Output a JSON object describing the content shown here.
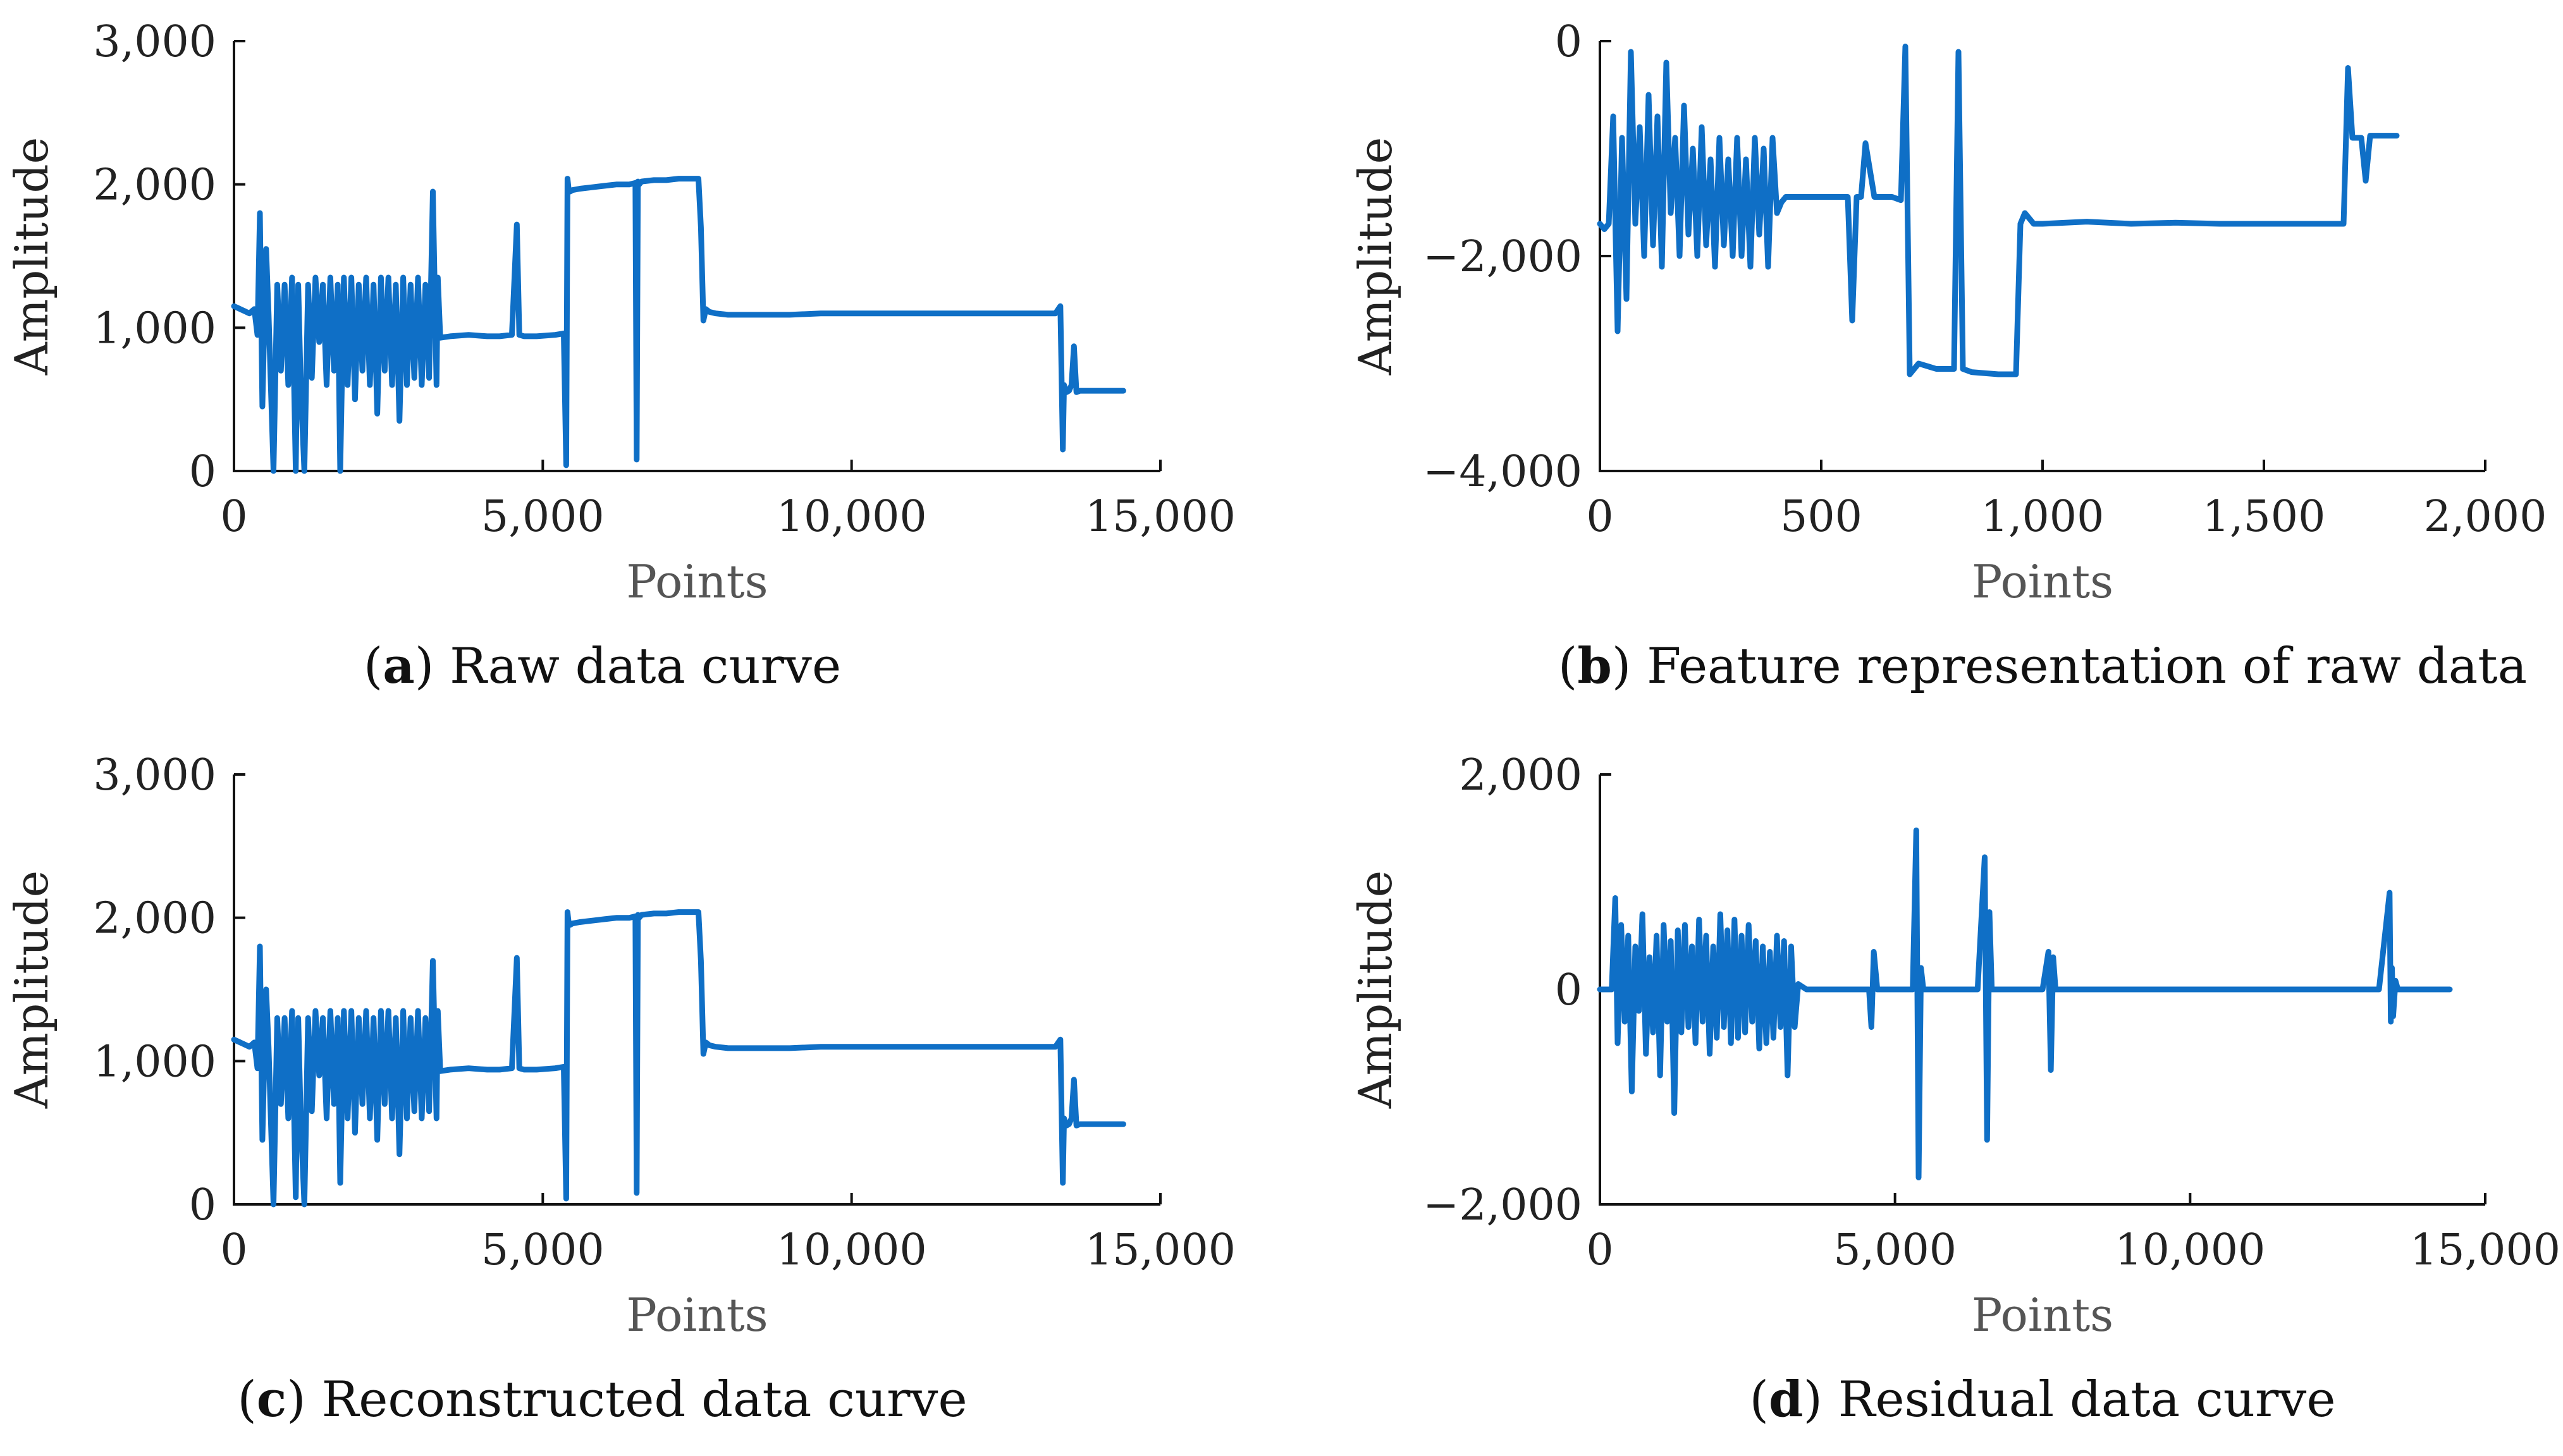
{
  "colors": {
    "series": "#0f6fc6",
    "axis": "#111111"
  },
  "chart_data": [
    {
      "id": "a",
      "type": "line",
      "caption_letter": "a",
      "caption_text": "Raw data curve",
      "xlabel": "Points",
      "ylabel": "Amplitude",
      "xlim": [
        0,
        15000
      ],
      "ylim": [
        0,
        3000
      ],
      "xticks": [
        0,
        5000,
        10000,
        15000
      ],
      "xtick_labels": [
        "0",
        "5,000",
        "10,000",
        "15,000"
      ],
      "yticks": [
        0,
        1000,
        2000,
        3000
      ],
      "ytick_labels": [
        "0",
        "1,000",
        "2,000",
        "3,000"
      ],
      "series": [
        {
          "x": [
            0,
            150,
            250,
            330,
            380,
            420,
            460,
            520,
            560,
            640,
            700,
            760,
            820,
            880,
            940,
            1000,
            1040,
            1080,
            1140,
            1200,
            1260,
            1320,
            1380,
            1440,
            1500,
            1560,
            1620,
            1680,
            1720,
            1780,
            1840,
            1900,
            1960,
            2020,
            2080,
            2140,
            2200,
            2260,
            2320,
            2380,
            2440,
            2500,
            2560,
            2620,
            2680,
            2740,
            2800,
            2860,
            2920,
            2980,
            3040,
            3100,
            3160,
            3220,
            3280,
            3300,
            3340,
            3500,
            3800,
            4100,
            4300,
            4500,
            4580,
            4620,
            4700,
            4900,
            5200,
            5340,
            5380,
            5400,
            5420,
            5440,
            5480,
            5600,
            5800,
            6000,
            6200,
            6400,
            6500,
            6520,
            6540,
            6560,
            6580,
            6600,
            6800,
            7000,
            7200,
            7400,
            7520,
            7560,
            7600,
            7640,
            7700,
            7800,
            8000,
            8500,
            9000,
            9500,
            10000,
            10500,
            11000,
            11500,
            12000,
            12500,
            13000,
            13300,
            13380,
            13420,
            13440,
            13480,
            13520,
            13560,
            13600,
            13640,
            13700,
            13800,
            14000,
            14200,
            14400
          ],
          "y": [
            1150,
            1120,
            1100,
            1130,
            950,
            1800,
            450,
            1550,
            1100,
            0,
            1300,
            700,
            1300,
            600,
            1350,
            0,
            1300,
            600,
            0,
            1300,
            650,
            1350,
            900,
            1300,
            600,
            1350,
            700,
            1300,
            0,
            1350,
            600,
            1350,
            500,
            1300,
            700,
            1350,
            600,
            1300,
            400,
            1350,
            700,
            1350,
            600,
            1300,
            350,
            1350,
            600,
            1300,
            650,
            1350,
            600,
            1300,
            650,
            1950,
            600,
            1350,
            930,
            940,
            950,
            940,
            940,
            950,
            1720,
            950,
            940,
            940,
            950,
            960,
            40,
            2040,
            1960,
            1950,
            1960,
            1970,
            1980,
            1990,
            2000,
            2000,
            2010,
            80,
            2020,
            2000,
            2010,
            2020,
            2030,
            2030,
            2040,
            2040,
            2040,
            1700,
            1050,
            1130,
            1110,
            1100,
            1090,
            1090,
            1090,
            1100,
            1100,
            1100,
            1100,
            1100,
            1100,
            1100,
            1100,
            1100,
            1150,
            150,
            600,
            550,
            560,
            600,
            870,
            550,
            560,
            560,
            560,
            560,
            560
          ]
        }
      ]
    },
    {
      "id": "b",
      "type": "line",
      "caption_letter": "b",
      "caption_text": "Feature representation of raw data",
      "xlabel": "Points",
      "ylabel": "Amplitude",
      "xlim": [
        0,
        2000
      ],
      "ylim": [
        -4000,
        0
      ],
      "xticks": [
        0,
        500,
        1000,
        1500,
        2000
      ],
      "xtick_labels": [
        "0",
        "500",
        "1,000",
        "1,500",
        "2,000"
      ],
      "yticks": [
        -4000,
        -2000,
        0
      ],
      "ytick_labels": [
        "−4,000",
        "−2,000",
        "0"
      ],
      "series": [
        {
          "x": [
            0,
            10,
            20,
            30,
            40,
            50,
            60,
            70,
            80,
            90,
            100,
            110,
            120,
            130,
            140,
            150,
            160,
            170,
            180,
            190,
            200,
            210,
            220,
            230,
            240,
            250,
            260,
            270,
            280,
            290,
            300,
            310,
            320,
            330,
            340,
            350,
            360,
            370,
            380,
            390,
            400,
            410,
            420,
            450,
            500,
            560,
            570,
            580,
            590,
            600,
            620,
            660,
            680,
            690,
            700,
            720,
            760,
            800,
            810,
            820,
            840,
            900,
            940,
            950,
            960,
            980,
            1000,
            1100,
            1200,
            1300,
            1400,
            1500,
            1600,
            1670,
            1680,
            1690,
            1700,
            1710,
            1720,
            1730,
            1740,
            1800
          ],
          "y": [
            -1700,
            -1750,
            -1700,
            -700,
            -2700,
            -900,
            -2400,
            -100,
            -1700,
            -800,
            -2000,
            -500,
            -1900,
            -700,
            -2100,
            -200,
            -1600,
            -900,
            -2000,
            -600,
            -1800,
            -1000,
            -2000,
            -800,
            -1900,
            -1100,
            -2100,
            -900,
            -1900,
            -1100,
            -2000,
            -900,
            -2000,
            -1100,
            -2100,
            -900,
            -1800,
            -1000,
            -2100,
            -900,
            -1600,
            -1500,
            -1450,
            -1450,
            -1450,
            -1450,
            -2600,
            -1450,
            -1450,
            -950,
            -1450,
            -1450,
            -1480,
            -50,
            -3100,
            -3000,
            -3050,
            -3050,
            -100,
            -3050,
            -3080,
            -3100,
            -3100,
            -1700,
            -1600,
            -1700,
            -1700,
            -1680,
            -1700,
            -1690,
            -1700,
            -1700,
            -1700,
            -1700,
            -1700,
            -250,
            -900,
            -900,
            -900,
            -1300,
            -880,
            -880
          ],
          "line_breaks": []
        }
      ]
    },
    {
      "id": "c",
      "type": "line",
      "caption_letter": "c",
      "caption_text": "Reconstructed data curve",
      "xlabel": "Points",
      "ylabel": "Amplitude",
      "xlim": [
        0,
        15000
      ],
      "ylim": [
        0,
        3000
      ],
      "xticks": [
        0,
        5000,
        10000,
        15000
      ],
      "xtick_labels": [
        "0",
        "5,000",
        "10,000",
        "15,000"
      ],
      "yticks": [
        0,
        1000,
        2000,
        3000
      ],
      "ytick_labels": [
        "0",
        "1,000",
        "2,000",
        "3,000"
      ],
      "series": [
        {
          "x": [
            0,
            150,
            250,
            330,
            380,
            420,
            460,
            520,
            560,
            640,
            700,
            760,
            820,
            880,
            940,
            1000,
            1040,
            1080,
            1140,
            1200,
            1260,
            1320,
            1380,
            1440,
            1500,
            1560,
            1620,
            1680,
            1720,
            1780,
            1840,
            1900,
            1960,
            2020,
            2080,
            2140,
            2200,
            2260,
            2320,
            2380,
            2440,
            2500,
            2560,
            2620,
            2680,
            2740,
            2800,
            2860,
            2920,
            2980,
            3040,
            3100,
            3160,
            3220,
            3280,
            3300,
            3340,
            3500,
            3800,
            4100,
            4300,
            4500,
            4580,
            4620,
            4700,
            4900,
            5200,
            5340,
            5380,
            5400,
            5420,
            5440,
            5480,
            5600,
            5800,
            6000,
            6200,
            6400,
            6500,
            6520,
            6540,
            6560,
            6580,
            6600,
            6800,
            7000,
            7200,
            7400,
            7520,
            7560,
            7600,
            7640,
            7700,
            7800,
            8000,
            8500,
            9000,
            9500,
            10000,
            10500,
            11000,
            11500,
            12000,
            12500,
            13000,
            13300,
            13380,
            13420,
            13440,
            13480,
            13520,
            13560,
            13600,
            13640,
            13700,
            13800,
            14000,
            14200,
            14400
          ],
          "y": [
            1150,
            1120,
            1100,
            1130,
            950,
            1800,
            450,
            1500,
            1100,
            0,
            1300,
            700,
            1300,
            600,
            1350,
            50,
            1300,
            600,
            0,
            1300,
            650,
            1350,
            900,
            1300,
            600,
            1350,
            700,
            1300,
            150,
            1350,
            600,
            1350,
            500,
            1300,
            700,
            1350,
            600,
            1300,
            450,
            1350,
            700,
            1350,
            600,
            1300,
            350,
            1350,
            600,
            1300,
            650,
            1350,
            600,
            1300,
            650,
            1700,
            600,
            1350,
            930,
            940,
            950,
            940,
            940,
            950,
            1720,
            950,
            940,
            940,
            950,
            960,
            40,
            2040,
            1960,
            1950,
            1960,
            1970,
            1980,
            1990,
            2000,
            2000,
            2010,
            80,
            2020,
            2000,
            2010,
            2020,
            2030,
            2030,
            2040,
            2040,
            2040,
            1700,
            1050,
            1130,
            1110,
            1100,
            1090,
            1090,
            1090,
            1100,
            1100,
            1100,
            1100,
            1100,
            1100,
            1100,
            1100,
            1100,
            1150,
            150,
            600,
            550,
            560,
            600,
            870,
            550,
            560,
            560,
            560,
            560,
            560
          ]
        }
      ]
    },
    {
      "id": "d",
      "type": "line",
      "caption_letter": "d",
      "caption_text": "Residual data curve",
      "xlabel": "Points",
      "ylabel": "Amplitude",
      "xlim": [
        0,
        15000
      ],
      "ylim": [
        -2000,
        2000
      ],
      "xticks": [
        0,
        5000,
        10000,
        15000
      ],
      "xtick_labels": [
        "0",
        "5,000",
        "10,000",
        "15,000"
      ],
      "yticks": [
        -2000,
        0,
        2000
      ],
      "ytick_labels": [
        "−2,000",
        "0",
        "2,000"
      ],
      "series": [
        {
          "x": [
            0,
            100,
            200,
            260,
            300,
            360,
            420,
            480,
            540,
            600,
            660,
            720,
            780,
            840,
            900,
            960,
            1020,
            1080,
            1140,
            1200,
            1260,
            1320,
            1380,
            1440,
            1500,
            1560,
            1620,
            1680,
            1740,
            1800,
            1860,
            1920,
            1980,
            2040,
            2100,
            2160,
            2220,
            2280,
            2340,
            2400,
            2460,
            2520,
            2580,
            2640,
            2700,
            2760,
            2820,
            2880,
            2940,
            3000,
            3060,
            3120,
            3180,
            3240,
            3300,
            3360,
            3500,
            3800,
            4200,
            4560,
            4600,
            4640,
            4700,
            5000,
            5300,
            5360,
            5400,
            5440,
            5480,
            5600,
            6000,
            6400,
            6520,
            6560,
            6600,
            6640,
            6700,
            7000,
            7500,
            7600,
            7640,
            7680,
            7720,
            7800,
            8500,
            9500,
            10500,
            11500,
            12500,
            13200,
            13380,
            13400,
            13420,
            13440,
            13480,
            13520,
            13600,
            13800,
            14000,
            14200,
            14400
          ],
          "y": [
            0,
            0,
            0,
            850,
            -500,
            600,
            -300,
            500,
            -950,
            400,
            -200,
            700,
            -600,
            300,
            -400,
            500,
            -800,
            600,
            -300,
            450,
            -1150,
            550,
            -400,
            600,
            -350,
            400,
            -500,
            650,
            -300,
            500,
            -600,
            400,
            -450,
            700,
            -350,
            550,
            -500,
            650,
            -450,
            500,
            -400,
            600,
            -300,
            450,
            -550,
            400,
            -500,
            350,
            -450,
            500,
            -350,
            450,
            -800,
            400,
            -350,
            50,
            0,
            0,
            0,
            0,
            -350,
            350,
            0,
            0,
            0,
            1480,
            -1750,
            200,
            0,
            0,
            0,
            0,
            1230,
            -1400,
            720,
            0,
            0,
            0,
            0,
            350,
            -750,
            300,
            0,
            0,
            0,
            0,
            0,
            0,
            0,
            0,
            900,
            -300,
            200,
            -250,
            80,
            0,
            0,
            0,
            0,
            0,
            0
          ]
        }
      ]
    }
  ]
}
